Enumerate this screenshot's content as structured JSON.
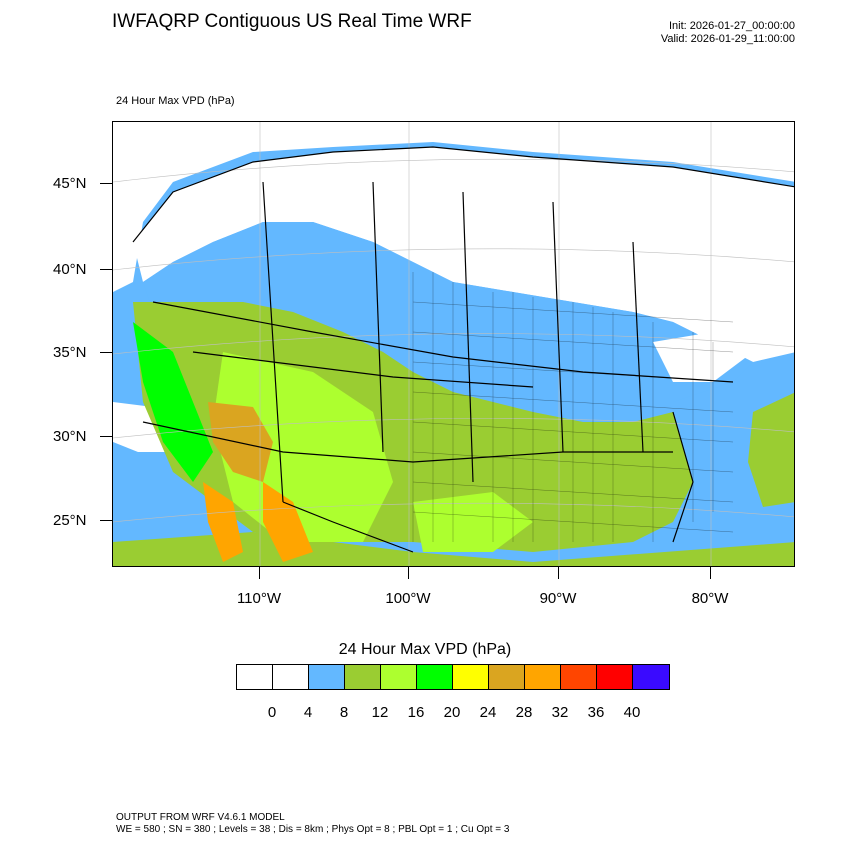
{
  "header": {
    "title": "IWFAQRP Contiguous US Real Time WRF",
    "init": "Init: 2026-01-27_00:00:00",
    "valid": "Valid: 2026-01-29_11:00:00"
  },
  "field_label": "24 Hour Max VPD   (hPa)",
  "map": {
    "lat_labels": [
      "45°N",
      "40°N",
      "35°N",
      "30°N",
      "25°N"
    ],
    "lon_labels": [
      "110°W",
      "100°W",
      "90°W",
      "80°W"
    ]
  },
  "legend": {
    "title": "24 Hour Max VPD  (hPa)",
    "colors": [
      "#ffffff",
      "#ffffff",
      "#63b8ff",
      "#9acd32",
      "#adff2f",
      "#00ff00",
      "#ffff00",
      "#daa520",
      "#ffa500",
      "#ff4500",
      "#ff0000",
      "#3a0aff"
    ],
    "ticks": [
      "0",
      "4",
      "8",
      "12",
      "16",
      "20",
      "24",
      "28",
      "32",
      "36",
      "40"
    ]
  },
  "footer": {
    "line1": "OUTPUT FROM WRF V4.6.1 MODEL",
    "line2": "WE = 580 ; SN = 380 ; Levels = 38 ; Dis = 8km ; Phys Opt = 8 ; PBL Opt = 1 ; Cu Opt = 3"
  }
}
